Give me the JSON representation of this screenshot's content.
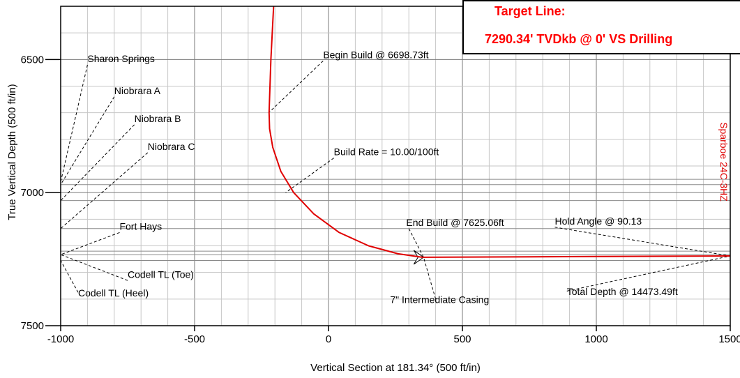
{
  "chart_data": {
    "type": "line",
    "xlabel": "Vertical Section at 181.34° (500 ft/in)",
    "ylabel": "True Vertical Depth (500 ft/in)",
    "xlim": [
      -1000,
      1500
    ],
    "ylim": [
      7500,
      6300
    ],
    "y_inverted": true,
    "grid": true,
    "x_ticks": [
      -1000,
      -500,
      0,
      500,
      1000,
      1500
    ],
    "y_ticks": [
      6500,
      7000,
      7500
    ],
    "series": [
      {
        "name": "Sparboe 24C-3HZ",
        "color": "#e00000",
        "points": [
          {
            "x": -205,
            "y": 6300
          },
          {
            "x": -215,
            "y": 6500
          },
          {
            "x": -222,
            "y": 6698.73
          },
          {
            "x": -220,
            "y": 6760
          },
          {
            "x": -208,
            "y": 6830
          },
          {
            "x": -178,
            "y": 6920
          },
          {
            "x": -130,
            "y": 7000
          },
          {
            "x": -55,
            "y": 7080
          },
          {
            "x": 40,
            "y": 7150
          },
          {
            "x": 150,
            "y": 7200
          },
          {
            "x": 260,
            "y": 7230
          },
          {
            "x": 350,
            "y": 7243
          },
          {
            "x": 1000,
            "y": 7240
          },
          {
            "x": 1500,
            "y": 7238
          }
        ]
      }
    ],
    "formation_lines": [
      {
        "name": "Sharon Springs",
        "tvd": 6950
      },
      {
        "name": "Niobrara A",
        "tvd": 6970
      },
      {
        "name": "Niobrara B",
        "tvd": 7030
      },
      {
        "name": "Niobrara C",
        "tvd": 7135
      },
      {
        "name": "Fort Hays",
        "tvd": 7220
      },
      {
        "name": "Codell TL (Toe)",
        "tvd": 7233
      },
      {
        "name": "Codell TL (Heel)",
        "tvd": 7255
      }
    ],
    "annotations": [
      {
        "text": "Sharon Springs",
        "x": -900,
        "y": 6510
      },
      {
        "text": "Niobrara A",
        "x": -800,
        "y": 6630
      },
      {
        "text": "Niobrara B",
        "x": -725,
        "y": 6735
      },
      {
        "text": "Niobrara C",
        "x": -675,
        "y": 6840
      },
      {
        "text": "Begin Build @ 6698.73ft",
        "x": -20,
        "y": 6495
      },
      {
        "text": "Build Rate = 10.00/100ft",
        "x": 20,
        "y": 6860
      },
      {
        "text": "Fort Hays",
        "x": -780,
        "y": 7140
      },
      {
        "text": "End Build @ 7625.06ft",
        "x": 290,
        "y": 7125
      },
      {
        "text": "Hold Angle @ 90.13",
        "x": 845,
        "y": 7120
      },
      {
        "text": "Codell TL (Toe)",
        "x": -750,
        "y": 7320
      },
      {
        "text": "Codell TL (Heel)",
        "x": -935,
        "y": 7390
      },
      {
        "text": "Total Depth @ 14473.49ft",
        "x": 890,
        "y": 7385
      },
      {
        "text": "7\" Intermediate Casing",
        "x": 230,
        "y": 7415
      }
    ],
    "well_label": "Sparboe 24C-3HZ",
    "target_box": {
      "line1": "Target Line:",
      "line2": "7290.34' TVDkb @ 0' VS Drilling"
    }
  }
}
